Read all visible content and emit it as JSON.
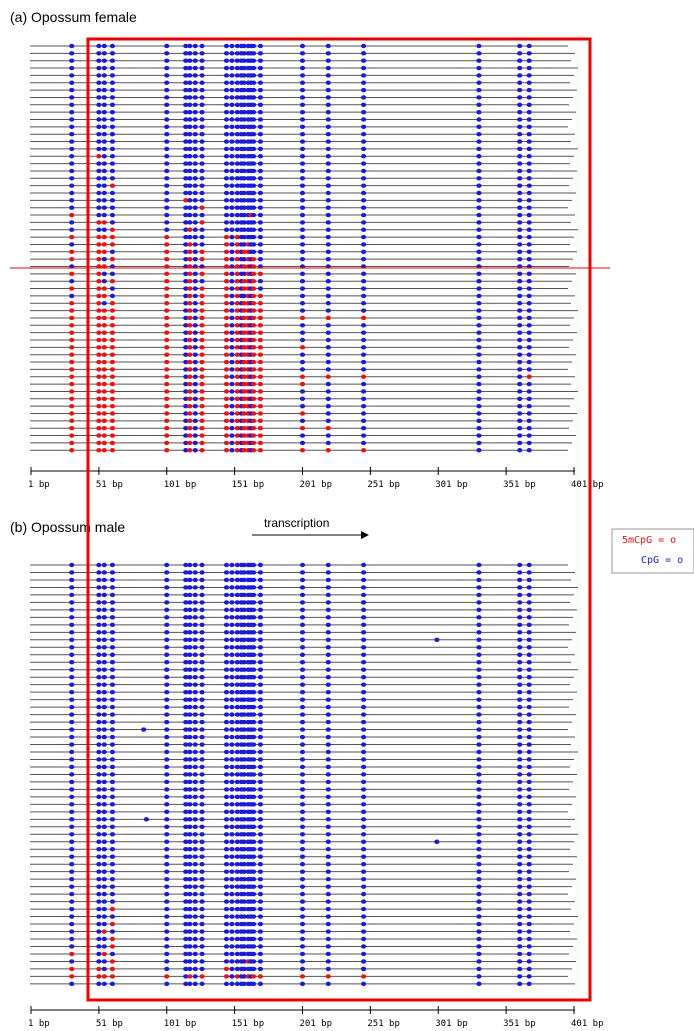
{
  "panels": [
    {
      "id": "female",
      "title": "(a) Opossum female",
      "read_count": 56,
      "methylated_reads": [
        {
          "read": 15,
          "bp": [
            51
          ]
        },
        {
          "read": 19,
          "bp": [
            61
          ]
        },
        {
          "read": 21,
          "bp": [
            115
          ]
        },
        {
          "read": 22,
          "bp": [
            127
          ]
        },
        {
          "read": 23,
          "bp": [
            31,
            163
          ]
        },
        {
          "read": 24,
          "bp": [
            51,
            55,
            127
          ]
        },
        {
          "read": 25,
          "bp": [
            61,
            118
          ]
        },
        {
          "read": 26,
          "bp": [
            31,
            51,
            55,
            61,
            101,
            145,
            153
          ]
        },
        {
          "read": 27,
          "bp": [
            51,
            55,
            61,
            101,
            118,
            145,
            153,
            161
          ]
        },
        {
          "read": 28,
          "bp": [
            31,
            51,
            55,
            101,
            118,
            127,
            145,
            153,
            158,
            161
          ]
        },
        {
          "read": 29,
          "bp": [
            31,
            51,
            61,
            101,
            118,
            127,
            145,
            153,
            161,
            165
          ]
        },
        {
          "read": 30,
          "bp": [
            51,
            55,
            101,
            118,
            145,
            153,
            158,
            161,
            165
          ]
        },
        {
          "read": 31,
          "bp": [
            31,
            51,
            101,
            118,
            127,
            145,
            153,
            161,
            165,
            170
          ]
        },
        {
          "read": 32,
          "bp": [
            51,
            61,
            101,
            118,
            145,
            153,
            158,
            161,
            165
          ]
        },
        {
          "read": 33,
          "bp": [
            31,
            51,
            55,
            101,
            118,
            127,
            145,
            153,
            158,
            161,
            165
          ]
        },
        {
          "read": 34,
          "bp": [
            51,
            55,
            101,
            118,
            127,
            145,
            153,
            161,
            165,
            170
          ]
        },
        {
          "read": 35,
          "bp": [
            31,
            51,
            61,
            101,
            118,
            127,
            145,
            153,
            158,
            161,
            165,
            170
          ]
        },
        {
          "read": 36,
          "bp": [
            31,
            51,
            55,
            61,
            101,
            118,
            127,
            145,
            153,
            158,
            161,
            165,
            170
          ]
        },
        {
          "read": 37,
          "bp": [
            31,
            51,
            55,
            61,
            101,
            118,
            127,
            145,
            153,
            158,
            161,
            165,
            170,
            201,
            220,
            246
          ]
        },
        {
          "read": 38,
          "bp": [
            31,
            51,
            55,
            61,
            101,
            118,
            127,
            145,
            153,
            158,
            161,
            165,
            170
          ]
        },
        {
          "read": 39,
          "bp": [
            31,
            51,
            55,
            61,
            101,
            118,
            127,
            145,
            153,
            158,
            161,
            165,
            170
          ]
        },
        {
          "read": 40,
          "bp": [
            31,
            51,
            55,
            61,
            101,
            118,
            127,
            145,
            153,
            158,
            161,
            165,
            170
          ]
        },
        {
          "read": 41,
          "bp": [
            31,
            51,
            55,
            61,
            101,
            118,
            127,
            145,
            153,
            158,
            161,
            165,
            170,
            201
          ]
        },
        {
          "read": 42,
          "bp": [
            31,
            51,
            55,
            61,
            101,
            118,
            127,
            145,
            153,
            158,
            161,
            165,
            170
          ]
        },
        {
          "read": 43,
          "bp": [
            31,
            51,
            55,
            61,
            101,
            118,
            127,
            145,
            153,
            158,
            161,
            165,
            170
          ]
        },
        {
          "read": 44,
          "bp": [
            31,
            51,
            55,
            61,
            101,
            118,
            127,
            145,
            153,
            158,
            161,
            165,
            170
          ]
        },
        {
          "read": 45,
          "bp": [
            31,
            51,
            55,
            61,
            101,
            118,
            127,
            145,
            153,
            158,
            161,
            165,
            170,
            201,
            220,
            246,
            368
          ]
        },
        {
          "read": 46,
          "bp": [
            31,
            51,
            55,
            61,
            101,
            118,
            127,
            145,
            153,
            158,
            161,
            165,
            170,
            201
          ]
        },
        {
          "read": 47,
          "bp": [
            31,
            51,
            55,
            61,
            101,
            118,
            127,
            145,
            153,
            158,
            161,
            165,
            170
          ]
        },
        {
          "read": 48,
          "bp": [
            31,
            51,
            55,
            61,
            101,
            118,
            127,
            145,
            153,
            158,
            161,
            165,
            170
          ]
        },
        {
          "read": 49,
          "bp": [
            31,
            51,
            55,
            61,
            101,
            118,
            127,
            145,
            153,
            158,
            161,
            165,
            170
          ]
        },
        {
          "read": 50,
          "bp": [
            31,
            51,
            55,
            61,
            101,
            118,
            127,
            145,
            153,
            158,
            161,
            165,
            170,
            201
          ]
        },
        {
          "read": 51,
          "bp": [
            31,
            51,
            55,
            61,
            101,
            118,
            127,
            145,
            153,
            158,
            161,
            165,
            170
          ]
        },
        {
          "read": 52,
          "bp": [
            31,
            51,
            55,
            61,
            101,
            118,
            127,
            145,
            153,
            158,
            161,
            165,
            170,
            201,
            220
          ]
        },
        {
          "read": 53,
          "bp": [
            31,
            51,
            55,
            61,
            101,
            118,
            127,
            145,
            153,
            158,
            161,
            165,
            170
          ]
        },
        {
          "read": 54,
          "bp": [
            31,
            51,
            55,
            61,
            101,
            118,
            127,
            145,
            153,
            158,
            161,
            165,
            170
          ]
        },
        {
          "read": 55,
          "bp": [
            31,
            51,
            55,
            61,
            101,
            118,
            127,
            145,
            153,
            158,
            161,
            165,
            170,
            201,
            220,
            246
          ]
        }
      ]
    },
    {
      "id": "male",
      "title": "(b) Opossum male",
      "read_count": 57,
      "methylated_reads": [
        {
          "read": 46,
          "bp": [
            61
          ]
        },
        {
          "read": 48,
          "bp": [
            61
          ]
        },
        {
          "read": 49,
          "bp": [
            55
          ]
        },
        {
          "read": 50,
          "bp": [
            61
          ]
        },
        {
          "read": 51,
          "bp": [
            61
          ]
        },
        {
          "read": 52,
          "bp": [
            31,
            55
          ]
        },
        {
          "read": 53,
          "bp": [
            61,
            161
          ]
        },
        {
          "read": 54,
          "bp": [
            31,
            51,
            61,
            145
          ]
        },
        {
          "read": 55,
          "bp": [
            31,
            51,
            55,
            61,
            101,
            118,
            127,
            145,
            153,
            161,
            165,
            170,
            201,
            220,
            246
          ]
        }
      ],
      "extra_sites": [
        {
          "read": 5,
          "bp": 246
        },
        {
          "read": 10,
          "bp": 300
        },
        {
          "read": 22,
          "bp": 84
        },
        {
          "read": 34,
          "bp": 86
        },
        {
          "read": 37,
          "bp": 300
        },
        {
          "read": 54,
          "bp": 246
        }
      ]
    }
  ],
  "cpg_sites_bp": [
    31,
    51,
    55,
    61,
    101,
    115,
    118,
    122,
    127,
    145,
    149,
    153,
    156,
    158,
    161,
    163,
    165,
    170,
    201,
    220,
    246,
    331,
    361,
    368
  ],
  "axis": {
    "ticks": [
      {
        "bp": 1,
        "label": "1 bp"
      },
      {
        "bp": 51,
        "label": "51 bp"
      },
      {
        "bp": 101,
        "label": "101 bp"
      },
      {
        "bp": 151,
        "label": "151 bp"
      },
      {
        "bp": 201,
        "label": "201 bp"
      },
      {
        "bp": 251,
        "label": "251 bp"
      },
      {
        "bp": 301,
        "label": "301 bp"
      },
      {
        "bp": 351,
        "label": "351 bp"
      },
      {
        "bp": 401,
        "label": "401 bp"
      }
    ]
  },
  "transcription_label": "transcription",
  "legend": {
    "methylated_label": "5mCpG = o",
    "unmethylated_label": "CpG = o"
  },
  "colors": {
    "methylated": "#ee1111",
    "unmethylated": "#1a1ad8",
    "read_line": "#555555",
    "highlight_box": "#ee0000"
  }
}
